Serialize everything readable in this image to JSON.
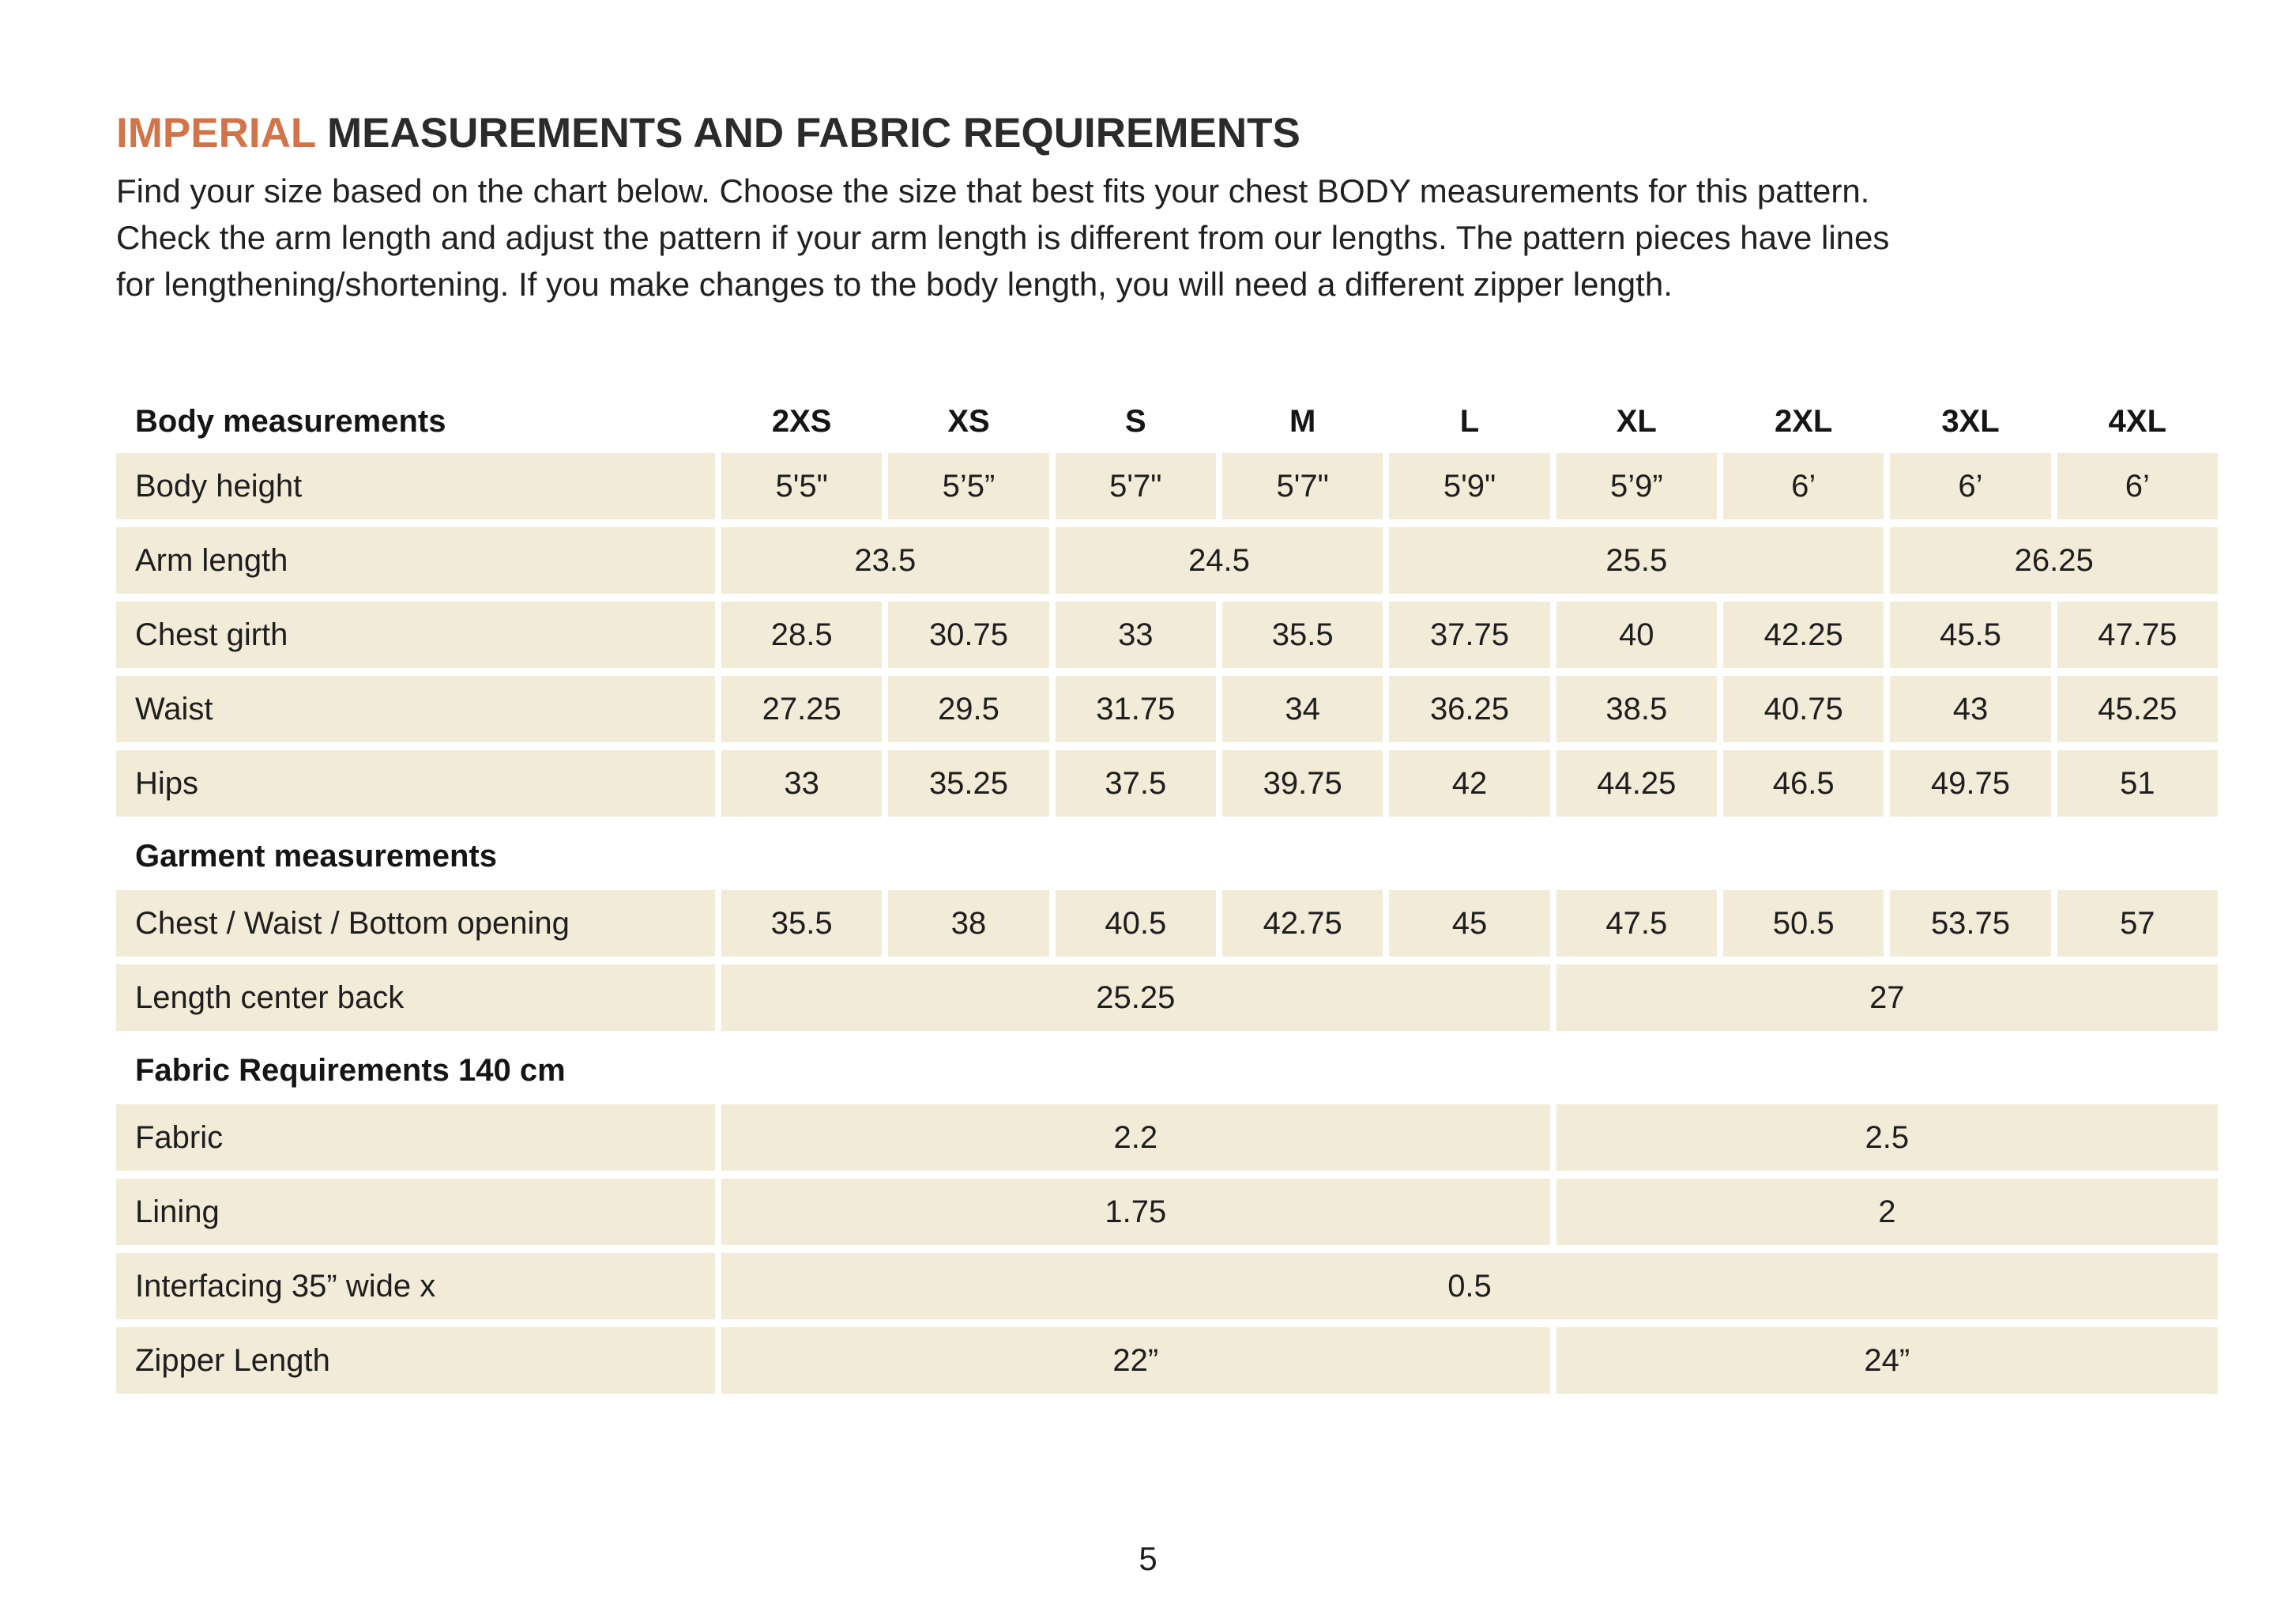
{
  "title": {
    "highlight": "IMPERIAL",
    "rest": " MEASUREMENTS AND FABRIC REQUIREMENTS"
  },
  "intro": {
    "lines": [
      "Find your size based on the chart below. Choose the size that best fits your chest BODY measurements for this pattern.",
      "Check the arm length and adjust the pattern if your arm length is different from our lengths. The pattern pieces have lines",
      "for lengthening/shortening. If you make changes to the body length, you will need a different zipper length."
    ]
  },
  "colors": {
    "accent": "#d2744a",
    "cell_background": "#f1ebd8",
    "text": "#1e1e1e"
  },
  "table": {
    "header": {
      "label": "Body measurements",
      "sizes": [
        "2XS",
        "XS",
        "S",
        "M",
        "L",
        "XL",
        "2XL",
        "3XL",
        "4XL"
      ]
    },
    "sections": {
      "garment": "Garment measurements",
      "fabric": "Fabric Requirements 140 cm"
    },
    "rows": {
      "body_height": {
        "label": "Body height",
        "values": [
          "5'5\"",
          "5’5”",
          "5'7\"",
          "5'7\"",
          "5'9\"",
          "5’9”",
          "6’",
          "6’",
          "6’"
        ]
      },
      "arm_length": {
        "label": "Arm length",
        "values": [
          "23.5",
          "24.5",
          "25.5",
          "26.25"
        ]
      },
      "chest_girth": {
        "label": "Chest girth",
        "values": [
          "28.5",
          "30.75",
          "33",
          "35.5",
          "37.75",
          "40",
          "42.25",
          "45.5",
          "47.75"
        ]
      },
      "waist": {
        "label": "Waist",
        "values": [
          "27.25",
          "29.5",
          "31.75",
          "34",
          "36.25",
          "38.5",
          "40.75",
          "43",
          "45.25"
        ]
      },
      "hips": {
        "label": "Hips",
        "values": [
          "33",
          "35.25",
          "37.5",
          "39.75",
          "42",
          "44.25",
          "46.5",
          "49.75",
          "51"
        ]
      },
      "chest_waist_bottom": {
        "label": "Chest / Waist / Bottom opening",
        "values": [
          "35.5",
          "38",
          "40.5",
          "42.75",
          "45",
          "47.5",
          "50.5",
          "53.75",
          "57"
        ]
      },
      "length_center_back": {
        "label": "Length center back",
        "values": [
          "25.25",
          "27"
        ]
      },
      "fabric": {
        "label": "Fabric",
        "values": [
          "2.2",
          "2.5"
        ]
      },
      "lining": {
        "label": "Lining",
        "values": [
          "1.75",
          "2"
        ]
      },
      "interfacing": {
        "label": "Interfacing  35” wide x",
        "values": [
          "0.5"
        ]
      },
      "zipper": {
        "label": "Zipper Length",
        "values": [
          "22”",
          "24”"
        ]
      }
    }
  },
  "page": {
    "number": "5"
  }
}
